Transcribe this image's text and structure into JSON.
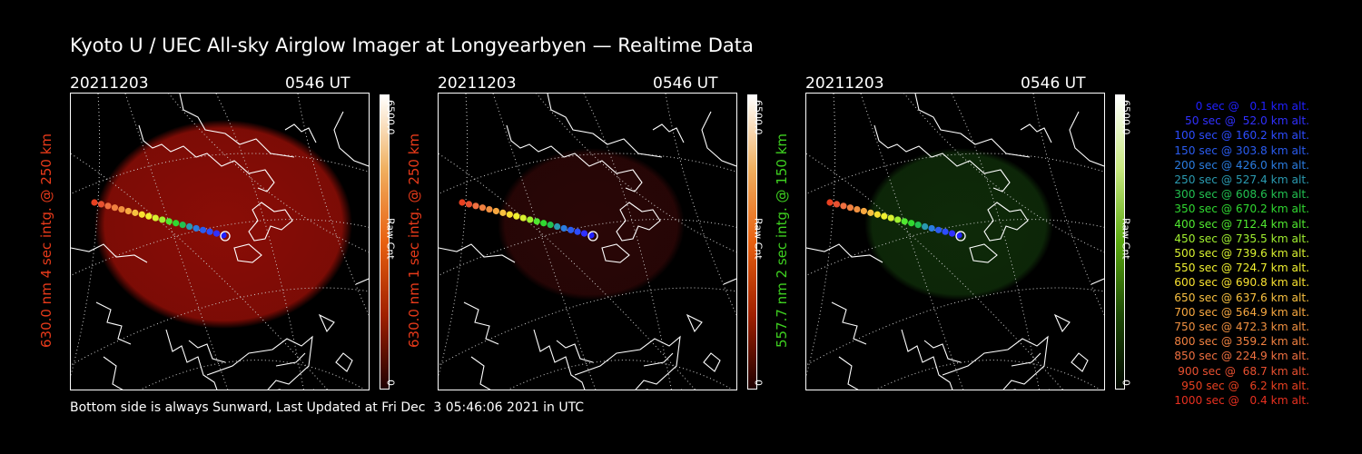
{
  "title": "Kyoto U / UEC All-sky Airglow Imager at Longyearbyen — Realtime Data",
  "panels": [
    {
      "date": "20211203",
      "ut": "0546 UT",
      "side_label": "630.0 nm 4 sec intg. @ 250 km",
      "label_color": "#e83a1a",
      "cbar_max": "6500.0",
      "cbar_min": "0",
      "cbar_unit": "Raw Cnt",
      "cbar_colors": [
        "#ffffff",
        "#f0b060",
        "#e86010",
        "#a02000",
        "#200000"
      ],
      "glow_color": "#8a0d06",
      "glow_level": 1.0
    },
    {
      "date": "20211203",
      "ut": "0546 UT",
      "side_label": "630.0 nm 1 sec intg. @ 250 km",
      "label_color": "#e83a1a",
      "cbar_max": "6500.0",
      "cbar_min": "0",
      "cbar_unit": "Raw Cnt",
      "cbar_colors": [
        "#ffffff",
        "#f0b060",
        "#e86010",
        "#a02000",
        "#200000"
      ],
      "glow_color": "#2a0606",
      "glow_level": 0.35
    },
    {
      "date": "20211203",
      "ut": "0546 UT",
      "side_label": "557.7 nm 2 sec intg. @ 150 km",
      "label_color": "#3ed020",
      "cbar_max": "6500.0",
      "cbar_min": "0",
      "cbar_unit": "Raw Cnt",
      "cbar_colors": [
        "#ffffff",
        "#c8e880",
        "#5aa810",
        "#1e4a06",
        "#020800"
      ],
      "glow_color": "#0e2a09",
      "glow_level": 0.5
    }
  ],
  "legend": [
    {
      "text": "0 sec @   0.1 km alt.",
      "color": "#2020ff"
    },
    {
      "text": "50 sec @  52.0 km alt.",
      "color": "#3030ff"
    },
    {
      "text": "100 sec @ 160.2 km alt.",
      "color": "#2c4cff"
    },
    {
      "text": "150 sec @ 303.8 km alt.",
      "color": "#2a5cf0"
    },
    {
      "text": "200 sec @ 426.0 km alt.",
      "color": "#2a7ce0"
    },
    {
      "text": "250 sec @ 527.4 km alt.",
      "color": "#2a9ab0"
    },
    {
      "text": "300 sec @ 608.6 km alt.",
      "color": "#22c050"
    },
    {
      "text": "350 sec @ 670.2 km alt.",
      "color": "#30d830"
    },
    {
      "text": "400 sec @ 712.4 km alt.",
      "color": "#50e830"
    },
    {
      "text": "450 sec @ 735.5 km alt.",
      "color": "#a0f030"
    },
    {
      "text": "500 sec @ 739.6 km alt.",
      "color": "#d8f030"
    },
    {
      "text": "550 sec @ 724.7 km alt.",
      "color": "#f0f030"
    },
    {
      "text": "600 sec @ 690.8 km alt.",
      "color": "#f8e030"
    },
    {
      "text": "650 sec @ 637.6 km alt.",
      "color": "#f8c040"
    },
    {
      "text": "700 sec @ 564.9 km alt.",
      "color": "#f8a840"
    },
    {
      "text": "750 sec @ 472.3 km alt.",
      "color": "#f09040"
    },
    {
      "text": "800 sec @ 359.2 km alt.",
      "color": "#f08040"
    },
    {
      "text": "850 sec @ 224.9 km alt.",
      "color": "#f07040"
    },
    {
      "text": "900 sec @  68.7 km alt.",
      "color": "#e85030"
    },
    {
      "text": "950 sec @   6.2 km alt.",
      "color": "#e84020"
    },
    {
      "text": "1000 sec @   0.4 km alt.",
      "color": "#e83020"
    }
  ],
  "footer": "Bottom side is always Sunward, Last Updated at Fri Dec  3 05:46:06 2021 in UTC"
}
